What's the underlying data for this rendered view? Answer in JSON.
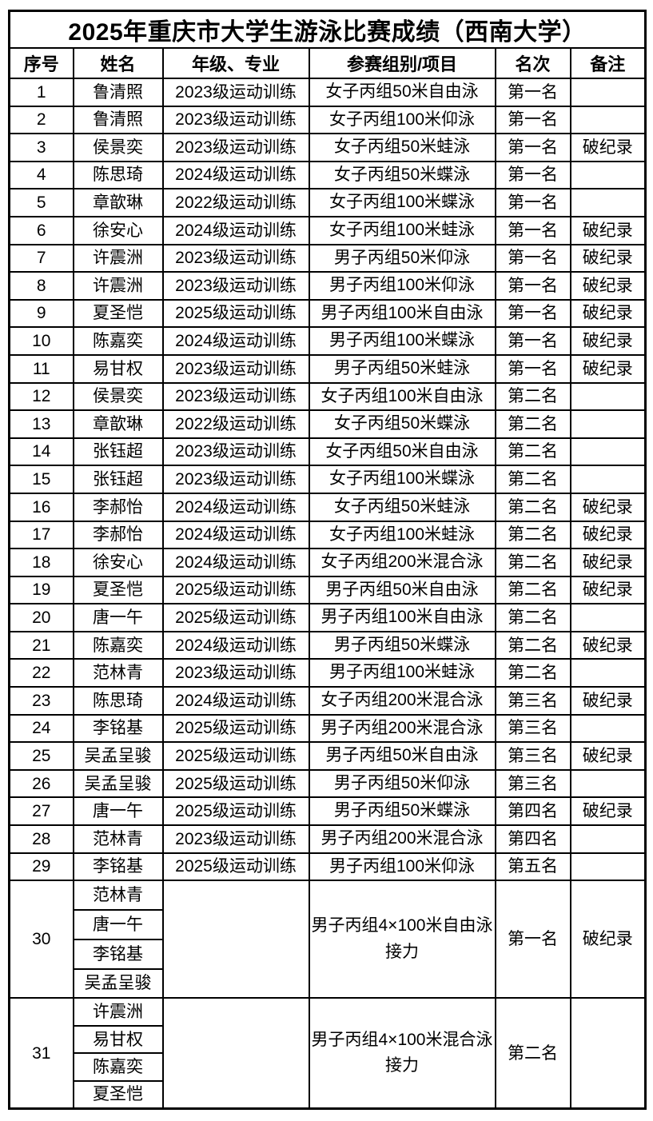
{
  "title": "2025年重庆市大学生游泳比赛成绩（西南大学）",
  "table": {
    "headers": [
      "序号",
      "姓名",
      "年级、专业",
      "参赛组别/项目",
      "名次",
      "备注"
    ],
    "rows": [
      {
        "no": "1",
        "name": "鲁清照",
        "grade": "2023级运动训练",
        "event": "女子丙组50米自由泳",
        "rank": "第一名",
        "note": ""
      },
      {
        "no": "2",
        "name": "鲁清照",
        "grade": "2023级运动训练",
        "event": "女子丙组100米仰泳",
        "rank": "第一名",
        "note": ""
      },
      {
        "no": "3",
        "name": "侯景奕",
        "grade": "2023级运动训练",
        "event": "女子丙组50米蛙泳",
        "rank": "第一名",
        "note": "破纪录"
      },
      {
        "no": "4",
        "name": "陈思琦",
        "grade": "2024级运动训练",
        "event": "女子丙组50米蝶泳",
        "rank": "第一名",
        "note": ""
      },
      {
        "no": "5",
        "name": "章歆琳",
        "grade": "2022级运动训练",
        "event": "女子丙组100米蝶泳",
        "rank": "第一名",
        "note": ""
      },
      {
        "no": "6",
        "name": "徐安心",
        "grade": "2024级运动训练",
        "event": "女子丙组100米蛙泳",
        "rank": "第一名",
        "note": "破纪录"
      },
      {
        "no": "7",
        "name": "许震洲",
        "grade": "2023级运动训练",
        "event": "男子丙组50米仰泳",
        "rank": "第一名",
        "note": "破纪录"
      },
      {
        "no": "8",
        "name": "许震洲",
        "grade": "2023级运动训练",
        "event": "男子丙组100米仰泳",
        "rank": "第一名",
        "note": "破纪录"
      },
      {
        "no": "9",
        "name": "夏圣恺",
        "grade": "2025级运动训练",
        "event": "男子丙组100米自由泳",
        "rank": "第一名",
        "note": "破纪录"
      },
      {
        "no": "10",
        "name": "陈嘉奕",
        "grade": "2024级运动训练",
        "event": "男子丙组100米蝶泳",
        "rank": "第一名",
        "note": "破纪录"
      },
      {
        "no": "11",
        "name": "易甘权",
        "grade": "2023级运动训练",
        "event": "男子丙组50米蛙泳",
        "rank": "第一名",
        "note": "破纪录"
      },
      {
        "no": "12",
        "name": "侯景奕",
        "grade": "2023级运动训练",
        "event": "女子丙组100米自由泳",
        "rank": "第二名",
        "note": ""
      },
      {
        "no": "13",
        "name": "章歆琳",
        "grade": "2022级运动训练",
        "event": "女子丙组50米蝶泳",
        "rank": "第二名",
        "note": ""
      },
      {
        "no": "14",
        "name": "张钰超",
        "grade": "2023级运动训练",
        "event": "女子丙组50米自由泳",
        "rank": "第二名",
        "note": ""
      },
      {
        "no": "15",
        "name": "张钰超",
        "grade": "2023级运动训练",
        "event": "女子丙组100米蝶泳",
        "rank": "第二名",
        "note": ""
      },
      {
        "no": "16",
        "name": "李郝怡",
        "grade": "2024级运动训练",
        "event": "女子丙组50米蛙泳",
        "rank": "第二名",
        "note": "破纪录"
      },
      {
        "no": "17",
        "name": "李郝怡",
        "grade": "2024级运动训练",
        "event": "女子丙组100米蛙泳",
        "rank": "第二名",
        "note": "破纪录"
      },
      {
        "no": "18",
        "name": "徐安心",
        "grade": "2024级运动训练",
        "event": "女子丙组200米混合泳",
        "rank": "第二名",
        "note": "破纪录"
      },
      {
        "no": "19",
        "name": "夏圣恺",
        "grade": "2025级运动训练",
        "event": "男子丙组50米自由泳",
        "rank": "第二名",
        "note": "破纪录"
      },
      {
        "no": "20",
        "name": "唐一午",
        "grade": "2025级运动训练",
        "event": "男子丙组100米自由泳",
        "rank": "第二名",
        "note": ""
      },
      {
        "no": "21",
        "name": "陈嘉奕",
        "grade": "2024级运动训练",
        "event": "男子丙组50米蝶泳",
        "rank": "第二名",
        "note": "破纪录"
      },
      {
        "no": "22",
        "name": "范林青",
        "grade": "2023级运动训练",
        "event": "男子丙组100米蛙泳",
        "rank": "第二名",
        "note": ""
      },
      {
        "no": "23",
        "name": "陈思琦",
        "grade": "2024级运动训练",
        "event": "女子丙组200米混合泳",
        "rank": "第三名",
        "note": "破纪录"
      },
      {
        "no": "24",
        "name": "李铭基",
        "grade": "2025级运动训练",
        "event": "男子丙组200米混合泳",
        "rank": "第三名",
        "note": ""
      },
      {
        "no": "25",
        "name": "吴孟呈骏",
        "grade": "2025级运动训练",
        "event": "男子丙组50米自由泳",
        "rank": "第三名",
        "note": "破纪录"
      },
      {
        "no": "26",
        "name": "吴孟呈骏",
        "grade": "2025级运动训练",
        "event": "男子丙组50米仰泳",
        "rank": "第三名",
        "note": ""
      },
      {
        "no": "27",
        "name": "唐一午",
        "grade": "2025级运动训练",
        "event": "男子丙组50米蝶泳",
        "rank": "第四名",
        "note": "破纪录"
      },
      {
        "no": "28",
        "name": "范林青",
        "grade": "2023级运动训练",
        "event": "男子丙组200米混合泳",
        "rank": "第四名",
        "note": ""
      },
      {
        "no": "29",
        "name": "李铭基",
        "grade": "2025级运动训练",
        "event": "男子丙组100米仰泳",
        "rank": "第五名",
        "note": ""
      }
    ],
    "relay_rows": [
      {
        "no": "30",
        "names": [
          "范林青",
          "唐一午",
          "李铭基",
          "吴孟呈骏"
        ],
        "grade": "",
        "event": "男子丙组4×100米自由泳接力",
        "rank": "第一名",
        "note": "破纪录"
      },
      {
        "no": "31",
        "names": [
          "许震洲",
          "易甘权",
          "陈嘉奕",
          "夏圣恺"
        ],
        "grade": "",
        "event": "男子丙组4×100米混合泳接力",
        "rank": "第二名",
        "note": ""
      }
    ]
  }
}
